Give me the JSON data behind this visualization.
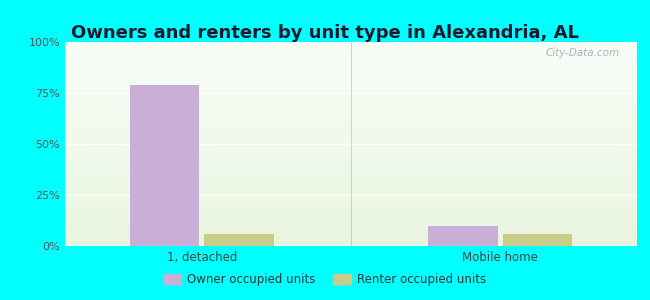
{
  "title": "Owners and renters by unit type in Alexandria, AL",
  "categories": [
    "1, detached",
    "Mobile home"
  ],
  "owner_values": [
    79,
    10
  ],
  "renter_values": [
    6,
    6
  ],
  "owner_color": "#c9aed6",
  "renter_color": "#c8cb8a",
  "ylim": [
    0,
    100
  ],
  "yticks": [
    0,
    25,
    50,
    75,
    100
  ],
  "ytick_labels": [
    "0%",
    "25%",
    "50%",
    "75%",
    "100%"
  ],
  "title_fontsize": 13,
  "outer_bg": "#00ffff",
  "watermark": "City-Data.com",
  "legend_owner": "Owner occupied units",
  "legend_renter": "Renter occupied units",
  "bar_width": 0.28,
  "group_positions": [
    0.55,
    1.75
  ]
}
